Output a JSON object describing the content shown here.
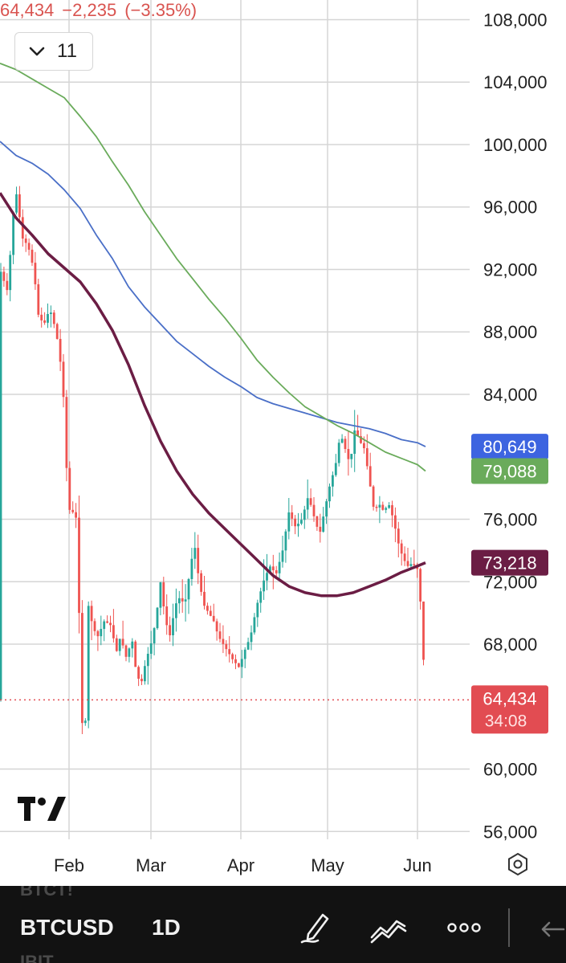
{
  "quote": {
    "last": "64,434",
    "change": "−2,235",
    "change_pct": "(−3.35%)"
  },
  "interval": {
    "value": "11"
  },
  "toolbar": {
    "ghost_top": "BTCT!",
    "symbol": "BTCUSD",
    "timeframe": "1D",
    "ghost_bottom": "IBIT",
    "icons": [
      "pencil-icon",
      "line-tool-icon",
      "more-icon",
      "undo-icon"
    ]
  },
  "chart_data": {
    "type": "candlestick",
    "y_ticks": [
      "108,000",
      "104,000",
      "100,000",
      "96,000",
      "92,000",
      "88,000",
      "84,000",
      "76,000",
      "72,000",
      "68,000",
      "60,000",
      "56,000"
    ],
    "ylim": [
      55500,
      109000
    ],
    "x_ticks": [
      "Feb",
      "Mar",
      "Apr",
      "May",
      "Jun"
    ],
    "price_badges": [
      {
        "label": "80,649",
        "value": 80649,
        "color": "#3d64e0"
      },
      {
        "label": "79,088",
        "value": 79088,
        "color": "#6aab5b"
      },
      {
        "label": "73,218",
        "value": 73218,
        "color": "#6b1d44"
      },
      {
        "label": "64,434",
        "sub": "34:08",
        "value": 64434,
        "color": "#e24c52"
      }
    ],
    "last_price": 64434,
    "moving_averages": [
      {
        "color": "#4a6fc7",
        "points": [
          [
            0,
            100200
          ],
          [
            20,
            99300
          ],
          [
            40,
            98800
          ],
          [
            60,
            98100
          ],
          [
            80,
            97100
          ],
          [
            100,
            95900
          ],
          [
            120,
            94200
          ],
          [
            140,
            92700
          ],
          [
            160,
            90900
          ],
          [
            180,
            89600
          ],
          [
            200,
            88500
          ],
          [
            220,
            87400
          ],
          [
            240,
            86600
          ],
          [
            260,
            85800
          ],
          [
            280,
            85100
          ],
          [
            300,
            84500
          ],
          [
            320,
            83800
          ],
          [
            340,
            83400
          ],
          [
            360,
            83100
          ],
          [
            380,
            82800
          ],
          [
            400,
            82500
          ],
          [
            420,
            82200
          ],
          [
            440,
            82000
          ],
          [
            460,
            81800
          ],
          [
            480,
            81500
          ],
          [
            500,
            81100
          ],
          [
            520,
            80900
          ],
          [
            530,
            80649
          ]
        ]
      },
      {
        "color": "#6aab5b",
        "points": [
          [
            0,
            105200
          ],
          [
            20,
            104800
          ],
          [
            40,
            104200
          ],
          [
            60,
            103600
          ],
          [
            80,
            103000
          ],
          [
            100,
            101800
          ],
          [
            120,
            100500
          ],
          [
            140,
            98900
          ],
          [
            160,
            97400
          ],
          [
            180,
            95700
          ],
          [
            200,
            94200
          ],
          [
            220,
            92700
          ],
          [
            240,
            91400
          ],
          [
            260,
            90100
          ],
          [
            280,
            88900
          ],
          [
            300,
            87600
          ],
          [
            320,
            86200
          ],
          [
            340,
            85100
          ],
          [
            360,
            84100
          ],
          [
            380,
            83200
          ],
          [
            400,
            82600
          ],
          [
            420,
            82000
          ],
          [
            440,
            81500
          ],
          [
            460,
            80900
          ],
          [
            480,
            80300
          ],
          [
            500,
            79900
          ],
          [
            520,
            79500
          ],
          [
            530,
            79088
          ]
        ]
      },
      {
        "color": "#6b1d44",
        "points": [
          [
            0,
            96900
          ],
          [
            20,
            95300
          ],
          [
            40,
            94200
          ],
          [
            60,
            93000
          ],
          [
            80,
            92100
          ],
          [
            100,
            91200
          ],
          [
            120,
            89800
          ],
          [
            140,
            88100
          ],
          [
            160,
            85900
          ],
          [
            180,
            83300
          ],
          [
            200,
            81000
          ],
          [
            220,
            79100
          ],
          [
            240,
            77600
          ],
          [
            260,
            76400
          ],
          [
            280,
            75400
          ],
          [
            300,
            74400
          ],
          [
            320,
            73400
          ],
          [
            340,
            72400
          ],
          [
            360,
            71700
          ],
          [
            380,
            71300
          ],
          [
            400,
            71100
          ],
          [
            420,
            71100
          ],
          [
            440,
            71300
          ],
          [
            460,
            71700
          ],
          [
            480,
            72100
          ],
          [
            500,
            72600
          ],
          [
            520,
            73000
          ],
          [
            530,
            73218
          ]
        ]
      }
    ],
    "candle_path": [
      [
        0,
        92000
      ],
      [
        10,
        90500
      ],
      [
        15,
        95000
      ],
      [
        20,
        97000
      ],
      [
        28,
        94000
      ],
      [
        35,
        93500
      ],
      [
        42,
        92000
      ],
      [
        48,
        89000
      ],
      [
        55,
        88500
      ],
      [
        62,
        89500
      ],
      [
        70,
        88000
      ],
      [
        78,
        85000
      ],
      [
        84,
        78000
      ],
      [
        88,
        76000
      ],
      [
        94,
        77000
      ],
      [
        98,
        71000
      ],
      [
        102,
        63000
      ],
      [
        106,
        62500
      ],
      [
        110,
        70500
      ],
      [
        116,
        69000
      ],
      [
        122,
        68500
      ],
      [
        130,
        69500
      ],
      [
        138,
        69200
      ],
      [
        145,
        67500
      ],
      [
        150,
        68500
      ],
      [
        158,
        67000
      ],
      [
        164,
        68500
      ],
      [
        170,
        66000
      ],
      [
        176,
        65500
      ],
      [
        182,
        67000
      ],
      [
        188,
        68000
      ],
      [
        194,
        69500
      ],
      [
        200,
        72000
      ],
      [
        206,
        69500
      ],
      [
        212,
        68500
      ],
      [
        218,
        70500
      ],
      [
        224,
        71000
      ],
      [
        230,
        70500
      ],
      [
        236,
        72500
      ],
      [
        242,
        74500
      ],
      [
        248,
        72000
      ],
      [
        254,
        70500
      ],
      [
        260,
        70000
      ],
      [
        266,
        69500
      ],
      [
        272,
        68500
      ],
      [
        278,
        68000
      ],
      [
        284,
        67500
      ],
      [
        290,
        67000
      ],
      [
        298,
        66500
      ],
      [
        304,
        67500
      ],
      [
        312,
        68500
      ],
      [
        320,
        70500
      ],
      [
        328,
        72000
      ],
      [
        336,
        73000
      ],
      [
        344,
        72500
      ],
      [
        352,
        74000
      ],
      [
        360,
        76500
      ],
      [
        368,
        75500
      ],
      [
        376,
        76000
      ],
      [
        384,
        77500
      ],
      [
        392,
        76000
      ],
      [
        398,
        75000
      ],
      [
        404,
        76500
      ],
      [
        410,
        78000
      ],
      [
        418,
        79500
      ],
      [
        424,
        81500
      ],
      [
        430,
        80500
      ],
      [
        436,
        79500
      ],
      [
        442,
        81800
      ],
      [
        448,
        81000
      ],
      [
        454,
        80500
      ],
      [
        460,
        78500
      ],
      [
        466,
        76500
      ],
      [
        472,
        77000
      ],
      [
        478,
        76500
      ],
      [
        484,
        77000
      ],
      [
        490,
        76000
      ],
      [
        496,
        74500
      ],
      [
        502,
        73500
      ],
      [
        508,
        73000
      ],
      [
        514,
        73200
      ],
      [
        520,
        72800
      ],
      [
        524,
        70500
      ],
      [
        528,
        66500
      ],
      [
        530,
        64434
      ]
    ]
  }
}
